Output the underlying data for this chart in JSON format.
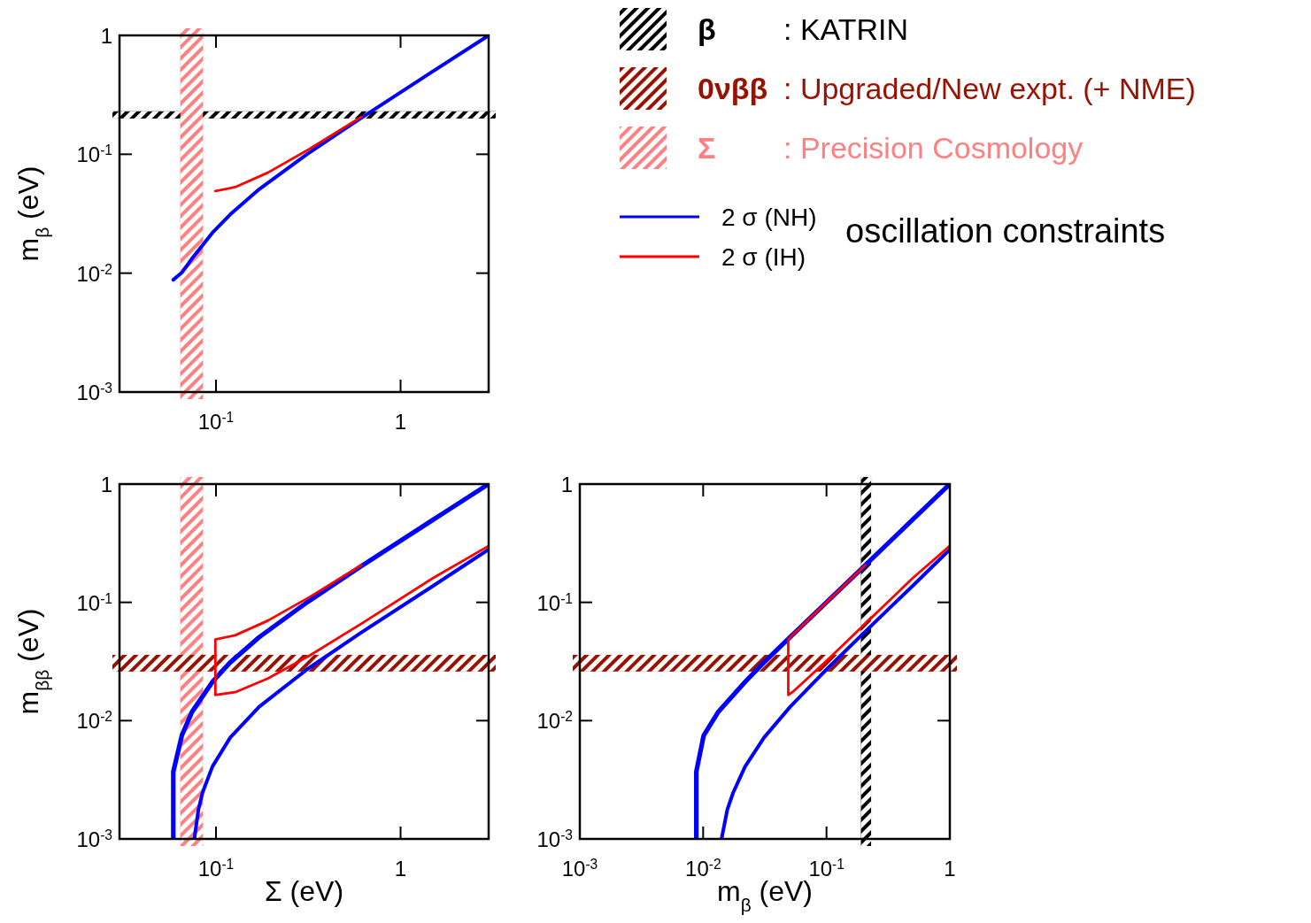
{
  "chart_data": [
    {
      "type": "line",
      "log": "xy",
      "ylabel": "m$_{β}$ (eV)",
      "xlim": [
        0.03,
        3
      ],
      "ylim": [
        0.001,
        1
      ],
      "xticks": [
        {
          "value": 0.1,
          "label": "10$^{-1}$"
        },
        {
          "value": 1,
          "label": "1"
        }
      ],
      "yticks": [
        {
          "value": 0.001,
          "label": "10$^{-3}$"
        },
        {
          "value": 0.01,
          "label": "10$^{-2}$"
        },
        {
          "value": 0.1,
          "label": "10$^{-1}$"
        },
        {
          "value": 1,
          "label": "1"
        }
      ],
      "series": [
        {
          "name": "2 σ (NH)",
          "color": "#0000ff",
          "x": [
            0.0587,
            0.0653,
            0.0742,
            0.0957,
            0.1195,
            0.1714,
            0.312,
            0.606,
            1.502,
            3
          ],
          "values": [
            0.0088,
            0.0101,
            0.0133,
            0.0219,
            0.0312,
            0.0508,
            0.1004,
            0.2002,
            0.5,
            1
          ]
        },
        {
          "name": "2 σ (IH)",
          "color": "#ff0000",
          "x": [
            0.0992,
            0.127,
            0.1908,
            0.3232,
            0.612
          ],
          "values": [
            0.049,
            0.0529,
            0.07,
            0.1115,
            0.206
          ]
        }
      ],
      "bands": [
        {
          "axis": "y",
          "from": 0.2,
          "to": 0.23,
          "color": "#000000"
        },
        {
          "axis": "x",
          "from": 0.064,
          "to": 0.085,
          "color": "#ff8080",
          "label": "Σ : Precision Cosmology"
        }
      ],
      "legend": "right",
      "annotations": [
        "oscillation constraints"
      ]
    },
    {
      "type": "line",
      "log": "xy",
      "xlabel": "Σ (eV)",
      "ylabel": "m$_{ββ}$ (eV)",
      "xlim": [
        0.03,
        3
      ],
      "ylim": [
        0.001,
        1
      ],
      "xticks": [
        {
          "value": 0.1,
          "label": "10$^{-1}$"
        },
        {
          "value": 1,
          "label": "1"
        }
      ],
      "yticks": [
        {
          "value": 0.001,
          "label": "10$^{-3}$"
        },
        {
          "value": 0.01,
          "label": "10$^{-2}$"
        },
        {
          "value": 0.1,
          "label": "10$^{-1}$"
        },
        {
          "value": 1,
          "label": "1"
        }
      ],
      "series": [
        {
          "color": "#0000ff",
          "x": [
            0.0587,
            0.0587,
            0.0653,
            0.0742,
            0.0957,
            0.1195,
            0.1714,
            0.312,
            0.606,
            1.502,
            3
          ],
          "values": [
            0.001,
            0.0037,
            0.0075,
            0.0119,
            0.0213,
            0.0311,
            0.0508,
            0.1003,
            0.2002,
            0.5,
            1
          ]
        },
        {
          "color": "#0000ff",
          "x": [
            0.0763,
            0.0803,
            0.0845,
            0.0957,
            0.1195,
            0.1714,
            0.312,
            0.606,
            1.502,
            3
          ],
          "values": [
            0.001,
            0.00177,
            0.00246,
            0.0041,
            0.0072,
            0.0131,
            0.0272,
            0.055,
            0.138,
            0.28
          ]
        },
        {
          "color": "#ff0000",
          "x": [
            0.612,
            0.3232,
            0.1908,
            0.127,
            0.0992,
            0.0992,
            0.127,
            0.1908,
            0.3232,
            0.612,
            1.505,
            3
          ],
          "values": [
            0.206,
            0.1115,
            0.07,
            0.0527,
            0.0485,
            0.0165,
            0.0174,
            0.0227,
            0.0357,
            0.0659,
            0.161,
            0.3
          ]
        }
      ],
      "bands": [
        {
          "axis": "x",
          "from": 0.064,
          "to": 0.085,
          "color": "#ff8080"
        },
        {
          "axis": "y",
          "from": 0.026,
          "to": 0.036,
          "color": "#991100"
        }
      ]
    },
    {
      "type": "line",
      "log": "xy",
      "xlabel": "m$_{β}$ (eV)",
      "xlim": [
        0.001,
        1
      ],
      "ylim": [
        0.001,
        1
      ],
      "xticks": [
        {
          "value": 0.001,
          "label": "10$^{-3}$"
        },
        {
          "value": 0.01,
          "label": "10$^{-2}$"
        },
        {
          "value": 0.1,
          "label": "10$^{-1}$"
        },
        {
          "value": 1,
          "label": "1"
        }
      ],
      "yticks": [
        {
          "value": 0.001,
          "label": "10$^{-3}$"
        },
        {
          "value": 0.01,
          "label": "10$^{-2}$"
        },
        {
          "value": 0.1,
          "label": "10$^{-1}$"
        },
        {
          "value": 1,
          "label": "1"
        }
      ],
      "series": [
        {
          "color": "#0000ff",
          "x": [
            0.0088,
            0.0088,
            0.0101,
            0.0133,
            0.0219,
            0.0312,
            0.0508,
            0.1004,
            0.2002,
            0.5,
            1
          ],
          "values": [
            0.001,
            0.0037,
            0.0075,
            0.0119,
            0.0213,
            0.0311,
            0.0508,
            0.1003,
            0.2002,
            0.5,
            1
          ]
        },
        {
          "color": "#0000ff",
          "x": [
            0.0141,
            0.0157,
            0.0175,
            0.0219,
            0.0312,
            0.0508,
            0.1004,
            0.2002,
            0.5,
            1
          ],
          "values": [
            0.001,
            0.00177,
            0.00246,
            0.0041,
            0.0072,
            0.0131,
            0.0272,
            0.055,
            0.138,
            0.28
          ]
        },
        {
          "color": "#ff0000",
          "x": [
            0.206,
            0.1115,
            0.07,
            0.0529,
            0.049,
            0.049,
            0.0529,
            0.07,
            0.1115,
            0.206,
            0.5024,
            1
          ],
          "values": [
            0.206,
            0.1115,
            0.07,
            0.0527,
            0.0485,
            0.0165,
            0.0174,
            0.0227,
            0.0357,
            0.0659,
            0.161,
            0.3
          ]
        }
      ],
      "bands": [
        {
          "axis": "x",
          "from": 0.19,
          "to": 0.23,
          "color": "#000000",
          "label": "β : KATRIN"
        },
        {
          "axis": "y",
          "from": 0.026,
          "to": 0.036,
          "color": "#991100",
          "label": "0νββ : Upgraded/New expt. (+ NME)"
        }
      ]
    }
  ]
}
